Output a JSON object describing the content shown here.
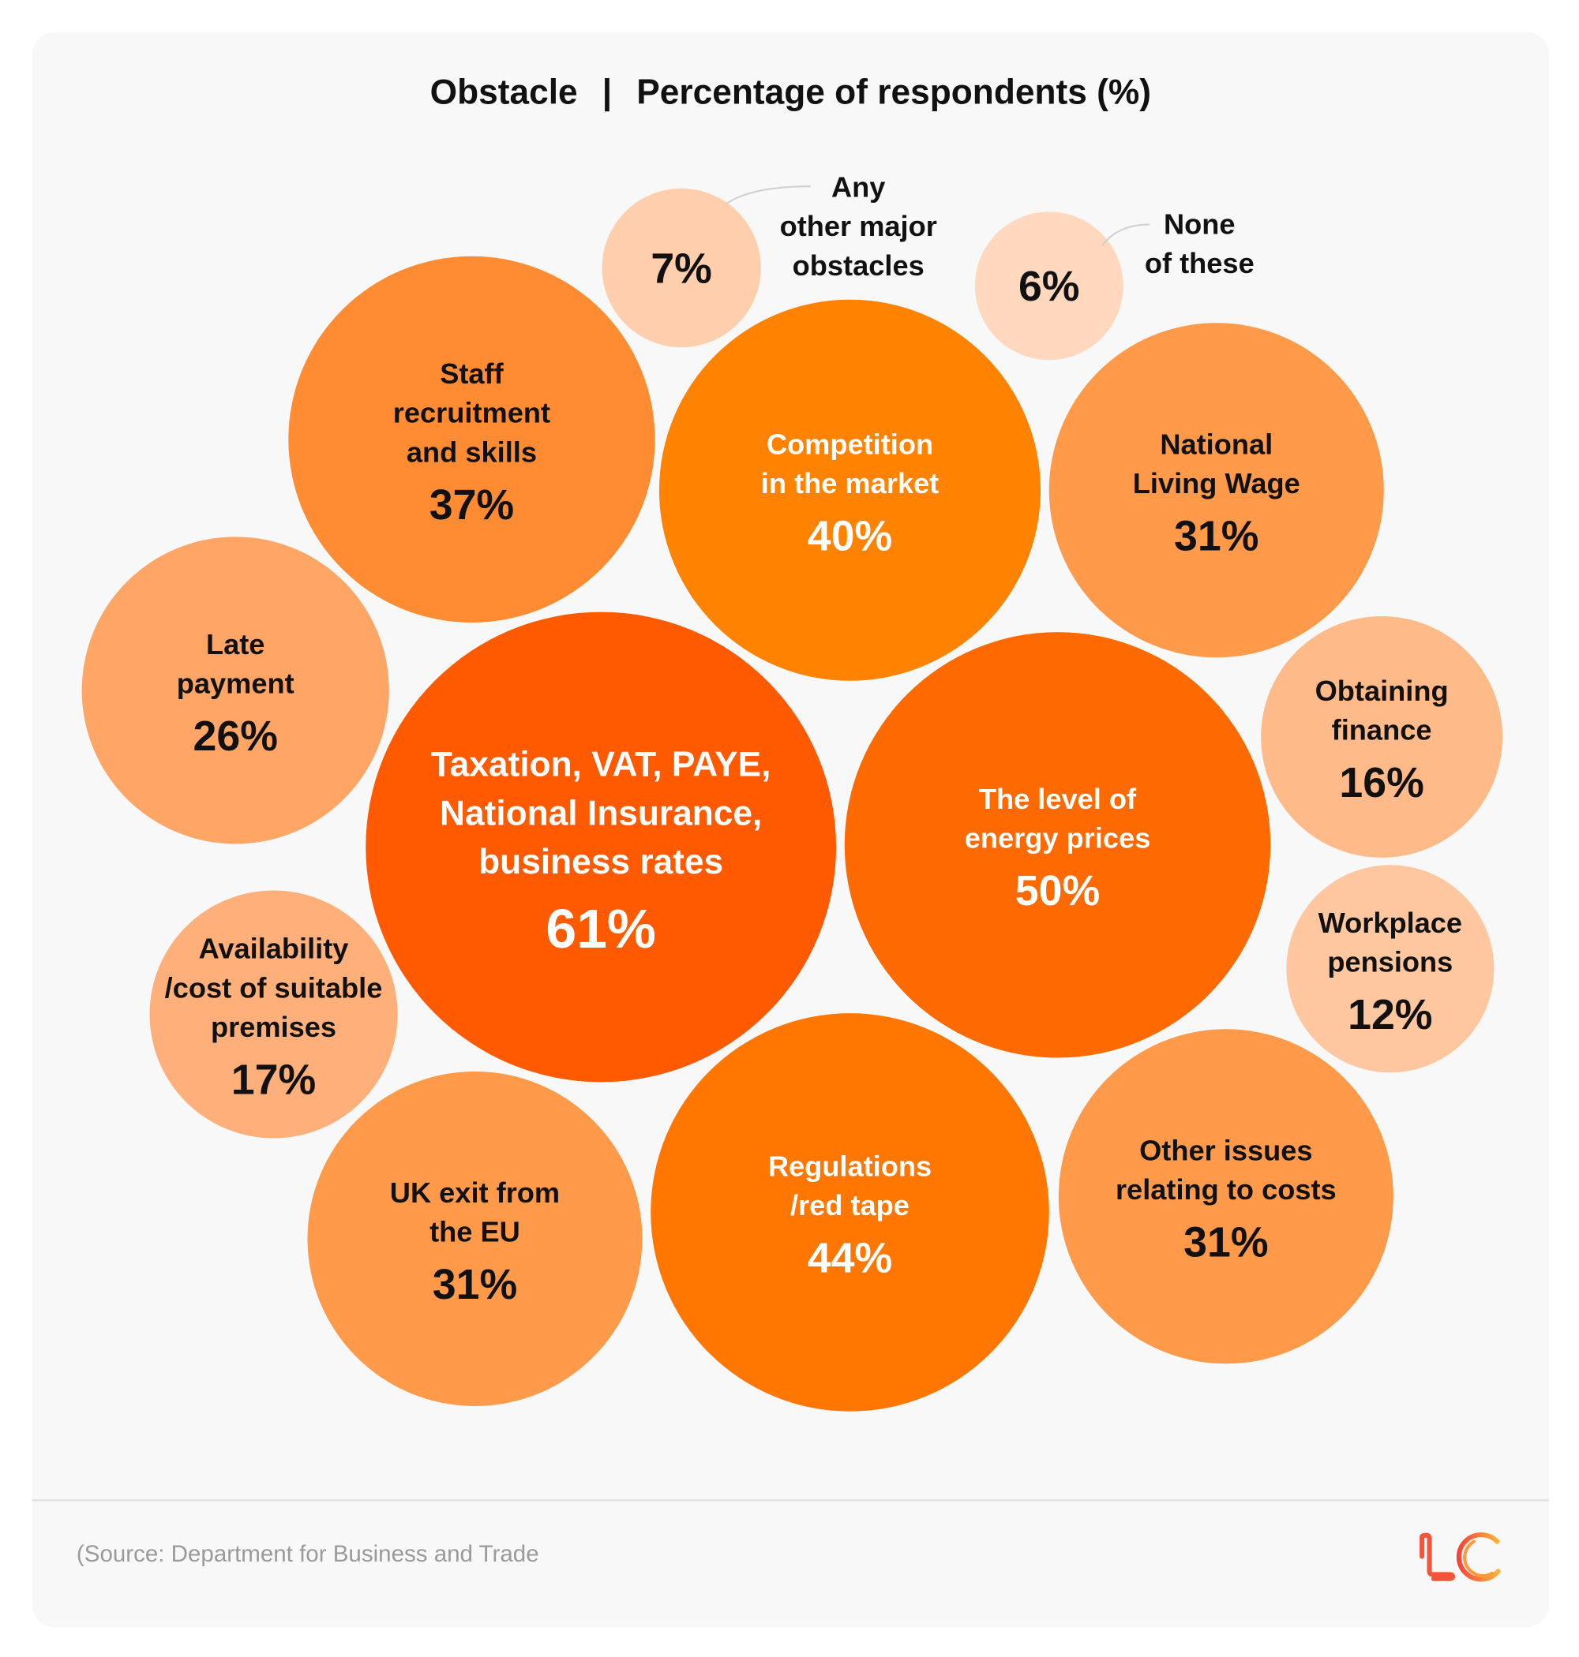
{
  "chart_data": {
    "type": "bubble",
    "title": "Obstacle  |  Percentage of respondents (%)",
    "unit": "%",
    "bubbles": [
      {
        "label": [
          "Taxation, VAT, PAYE,",
          "National Insurance,",
          "business rates"
        ],
        "value": 61,
        "display": "61%",
        "color": "#FF5A00",
        "text_color": "#FFFFFF"
      },
      {
        "label": [
          "The level of",
          "energy prices"
        ],
        "value": 50,
        "display": "50%",
        "color": "#FF6A00",
        "text_color": "#FFFFFF"
      },
      {
        "label": [
          "Regulations",
          "/red tape"
        ],
        "value": 44,
        "display": "44%",
        "color": "#FF7700",
        "text_color": "#FFFFFF"
      },
      {
        "label": [
          "Competition",
          "in the market"
        ],
        "value": 40,
        "display": "40%",
        "color": "#FF8200",
        "text_color": "#FFFFFF"
      },
      {
        "label": [
          "Staff",
          "recruitment",
          "and skills"
        ],
        "value": 37,
        "display": "37%",
        "color": "#FF8C33",
        "text_color": "#111111"
      },
      {
        "label": [
          "National",
          "Living Wage"
        ],
        "value": 31,
        "display": "31%",
        "color": "#FF9A4A",
        "text_color": "#111111"
      },
      {
        "label": [
          "UK exit from",
          "the EU"
        ],
        "value": 31,
        "display": "31%",
        "color": "#FF9A4A",
        "text_color": "#111111"
      },
      {
        "label": [
          "Other issues",
          "relating to costs"
        ],
        "value": 31,
        "display": "31%",
        "color": "#FF9A4A",
        "text_color": "#111111"
      },
      {
        "label": [
          "Late",
          "payment"
        ],
        "value": 26,
        "display": "26%",
        "color": "#FFA566",
        "text_color": "#111111"
      },
      {
        "label": [
          "Availability",
          "/cost of suitable",
          "premises"
        ],
        "value": 17,
        "display": "17%",
        "color": "#FFB07A",
        "text_color": "#111111"
      },
      {
        "label": [
          "Obtaining",
          "finance"
        ],
        "value": 16,
        "display": "16%",
        "color": "#FFBA8A",
        "text_color": "#111111"
      },
      {
        "label": [
          "Workplace",
          "pensions"
        ],
        "value": 12,
        "display": "12%",
        "color": "#FFC7A0",
        "text_color": "#111111"
      },
      {
        "label": [
          "Any",
          "other major",
          "obstacles"
        ],
        "value": 7,
        "display": "7%",
        "color": "#FFCFAD",
        "text_color": "#111111"
      },
      {
        "label": [
          "None",
          "of these"
        ],
        "value": 6,
        "display": "6%",
        "color": "#FFD8BD",
        "text_color": "#111111"
      }
    ]
  },
  "title": {
    "left": "Obstacle",
    "separator": "|",
    "right": "Percentage of respondents (%)"
  },
  "footer": {
    "source": "(Source: Department for Business and Trade",
    "logo_text": "LC"
  },
  "colors": {
    "background": "#F8F8F8",
    "divider": "#E2E2E2",
    "source_text": "#9A9A9A",
    "leader_line": "#CFCFCF"
  }
}
